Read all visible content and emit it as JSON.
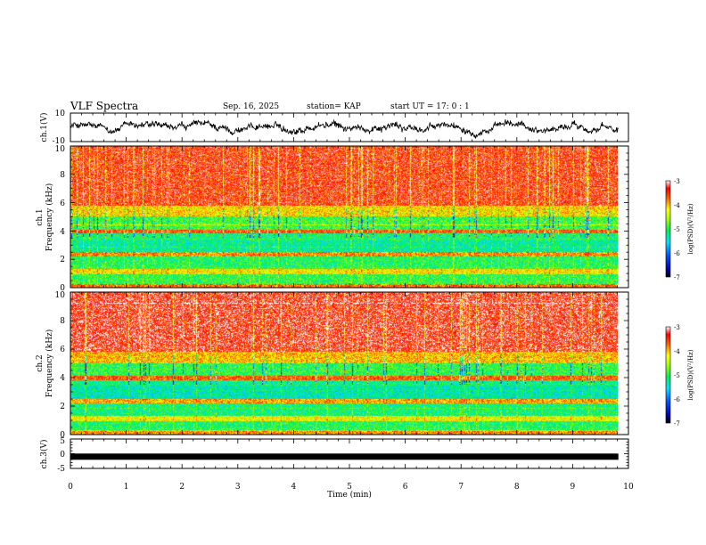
{
  "header": {
    "title": "VLF Spectra",
    "date": "Sep. 16, 2025",
    "station": "station= KAP",
    "start": "start  UT =   17: 0  : 1"
  },
  "chart_data": [
    {
      "id": "ch1-waveform",
      "type": "line",
      "ylabel": "ch.1(V)",
      "ylim": [
        -10,
        10
      ],
      "yticks": [
        "10",
        "-10"
      ],
      "xlim": [
        0,
        10
      ],
      "data_end": 9.82,
      "color": "#000000"
    },
    {
      "id": "ch1-spectrogram",
      "type": "heatmap",
      "ylabel_line1": "ch.1",
      "ylabel_line2": "Frequency  (kHz)",
      "ylim": [
        0,
        10
      ],
      "yticks": [
        "0",
        "2",
        "4",
        "6",
        "8",
        "10"
      ],
      "xlim": [
        0,
        10
      ],
      "colorbar": {
        "label": "log(PSD)(V²/Hz)",
        "range": [
          -7,
          -3
        ],
        "ticks": [
          "-3",
          "-4",
          "-5",
          "-6",
          "-7"
        ]
      }
    },
    {
      "id": "ch2-spectrogram",
      "type": "heatmap",
      "ylabel_line1": "ch.2",
      "ylabel_line2": "Frequency  (kHz)",
      "ylim": [
        0,
        10
      ],
      "yticks": [
        "0",
        "2",
        "4",
        "6",
        "8",
        "10"
      ],
      "xlim": [
        0,
        10
      ],
      "colorbar": {
        "label": "log(PSD)(V²/Hz)",
        "range": [
          -7,
          -3
        ],
        "ticks": [
          "-3",
          "-4",
          "-5",
          "-6",
          "-7"
        ]
      }
    },
    {
      "id": "ch3-waveform",
      "type": "line",
      "ylabel": "ch.3(V)",
      "ylim": [
        -5,
        5
      ],
      "yticks": [
        "5",
        "0",
        "-5"
      ],
      "level": -1.0,
      "xlim": [
        0,
        10
      ],
      "data_end": 9.82
    }
  ],
  "xaxis": {
    "label": "Time  (min)",
    "ticks": [
      "0",
      "1",
      "2",
      "3",
      "4",
      "5",
      "6",
      "7",
      "8",
      "9",
      "10"
    ]
  }
}
